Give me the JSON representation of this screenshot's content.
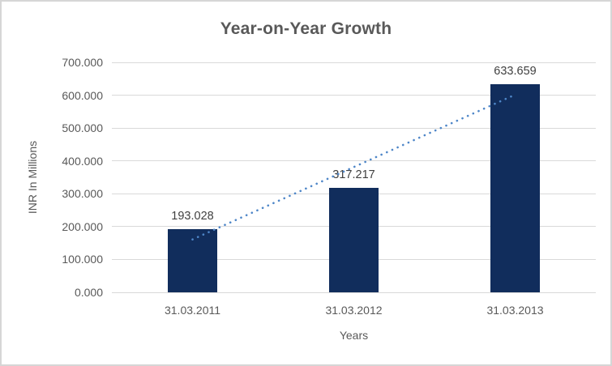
{
  "window": {
    "background_color": "#ffffff",
    "border_color": "#d6d6d6"
  },
  "chart_data": {
    "type": "bar",
    "title": "Year-on-Year Growth",
    "xlabel": "Years",
    "ylabel": "INR In Millions",
    "categories": [
      "31.03.2011",
      "31.03.2012",
      "31.03.2013"
    ],
    "values": [
      193.028,
      317.217,
      633.659
    ],
    "data_labels": [
      "193.028",
      "317.217",
      "633.659"
    ],
    "ytick_labels": [
      "0.000",
      "100.000",
      "200.000",
      "300.000",
      "400.000",
      "500.000",
      "600.000",
      "700.000"
    ],
    "ylim": [
      0,
      700
    ],
    "ytick_step": 100,
    "grid": true,
    "legend": "none",
    "series_name": "INR In Millions",
    "trendline": {
      "kind": "linear",
      "style": "dotted",
      "color": "#4e86c8"
    },
    "colors": {
      "bar": "#112d5c",
      "gridline": "#d9d9d9",
      "title_text": "#595959",
      "axis_text": "#595959",
      "data_label_text": "#404040"
    }
  }
}
